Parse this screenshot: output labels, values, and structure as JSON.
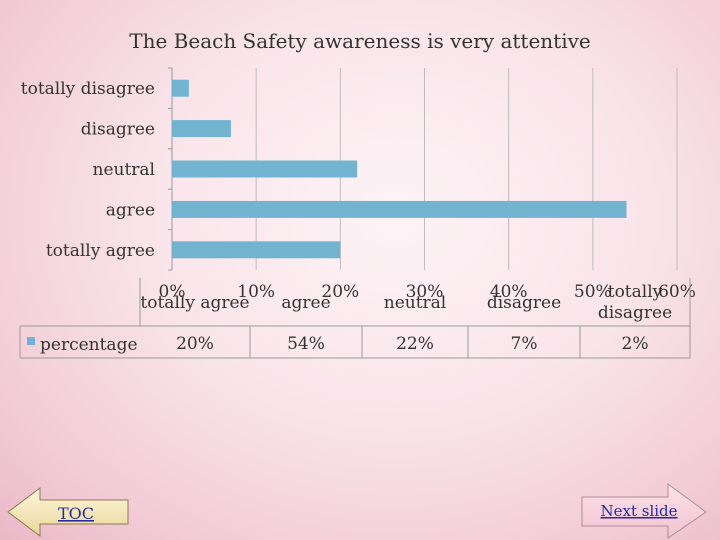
{
  "chart_data": {
    "type": "bar",
    "orientation": "horizontal",
    "title": "The Beach Safety awareness is very attentive",
    "categories": [
      "totally disagree",
      "disagree",
      "neutral",
      "agree",
      "totally agree"
    ],
    "series": [
      {
        "name": "percentage",
        "values": [
          2,
          7,
          22,
          54,
          20
        ]
      }
    ],
    "xlim": [
      0,
      60
    ],
    "xticks": [
      "0%",
      "10%",
      "20%",
      "30%",
      "40%",
      "50%",
      "60%"
    ],
    "grid": true,
    "color": "#72b3cf",
    "data_table": {
      "headers": [
        "totally agree",
        "agree",
        "neutral",
        "disagree",
        "totally disagree"
      ],
      "legend_label": "percentage",
      "values": [
        "20%",
        "54%",
        "22%",
        "7%",
        "2%"
      ]
    }
  },
  "nav": {
    "toc_label": "TOC",
    "next_label": "Next slide"
  }
}
